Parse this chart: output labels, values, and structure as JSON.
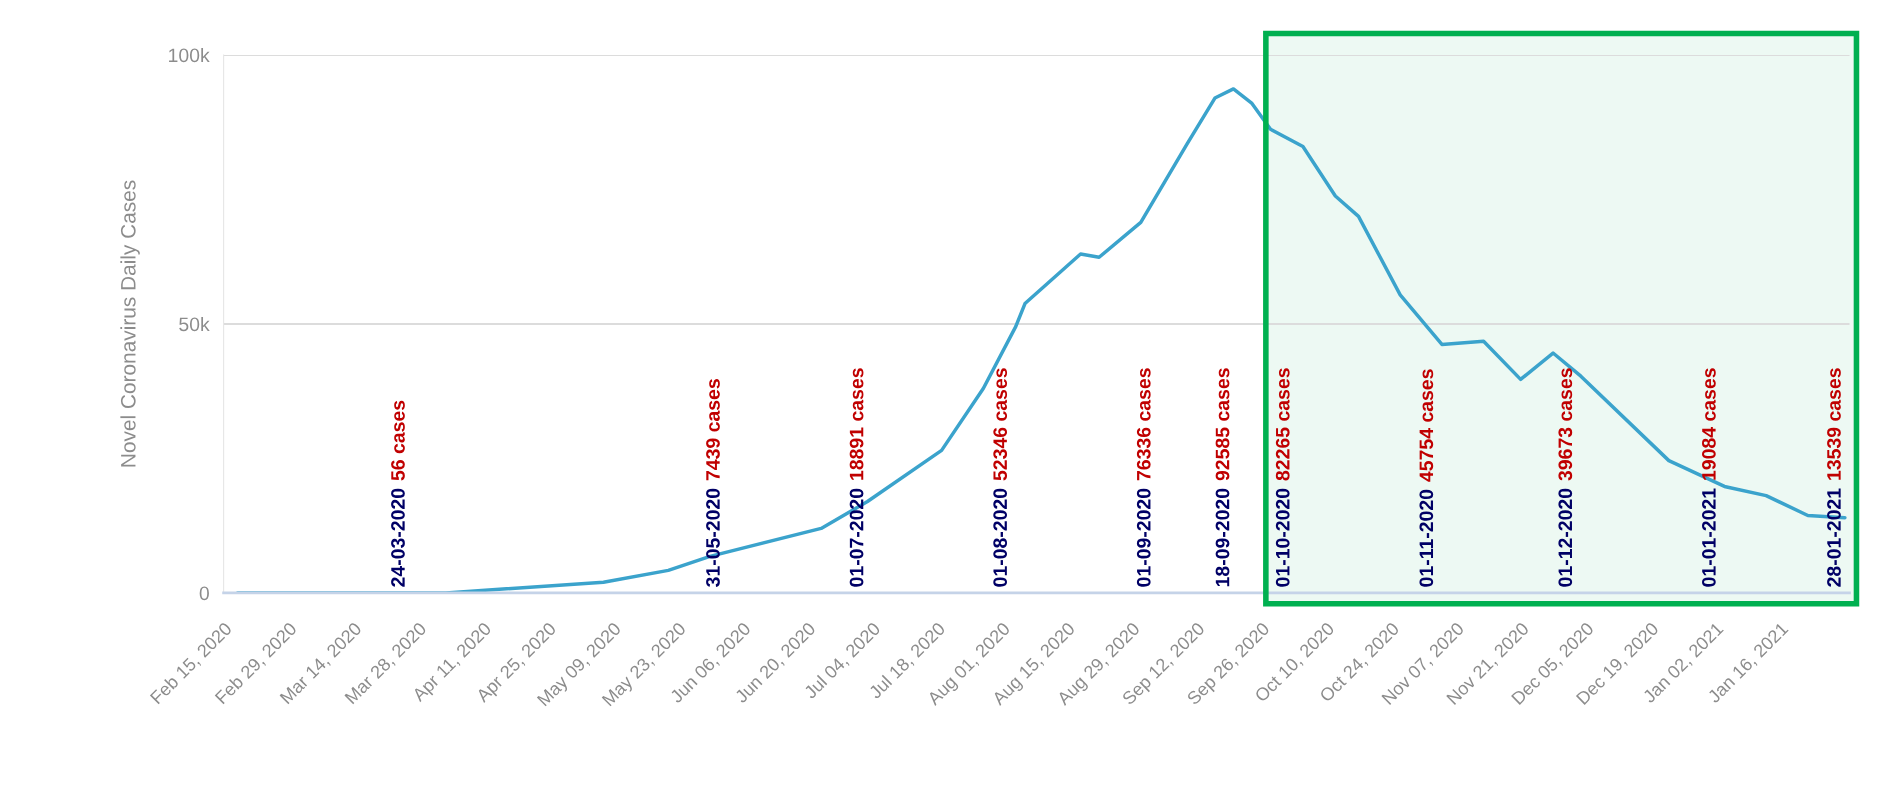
{
  "chart_data": {
    "type": "line",
    "ylabel": "Novel Coronavirus Daily Cases",
    "x": [
      "2020-02-18",
      "2020-04-03",
      "2020-05-07",
      "2020-05-21",
      "2020-05-30",
      "2020-06-23",
      "2020-07-03",
      "2020-07-19",
      "2020-07-28",
      "2020-08-04",
      "2020-08-06",
      "2020-08-18",
      "2020-08-22",
      "2020-08-31",
      "2020-09-10",
      "2020-09-16",
      "2020-09-20",
      "2020-09-24",
      "2020-09-28",
      "2020-10-05",
      "2020-10-12",
      "2020-10-17",
      "2020-10-26",
      "2020-11-04",
      "2020-11-13",
      "2020-11-21",
      "2020-11-28",
      "2020-12-04",
      "2020-12-23",
      "2021-01-04",
      "2021-01-13",
      "2021-01-22",
      "2021-01-30"
    ],
    "series": [
      {
        "color": "#3ba3cc",
        "values": [
          0,
          0,
          2000,
          4200,
          6800,
          12000,
          17000,
          26500,
          38000,
          49500,
          53800,
          63000,
          62400,
          68900,
          83500,
          92000,
          93700,
          91000,
          86200,
          83000,
          73800,
          70000,
          55400,
          46200,
          46800,
          39700,
          44600,
          40300,
          24600,
          19800,
          18100,
          14400,
          14000
        ]
      }
    ],
    "xlim": [
      "2020-02-15",
      "2021-01-31"
    ],
    "xticks": [
      {
        "value": "2020-02-15",
        "label": "Feb 15, 2020"
      },
      {
        "value": "2020-02-29",
        "label": "Feb 29, 2020"
      },
      {
        "value": "2020-03-14",
        "label": "Mar 14, 2020"
      },
      {
        "value": "2020-03-28",
        "label": "Mar 28, 2020"
      },
      {
        "value": "2020-04-11",
        "label": "Apr 11, 2020"
      },
      {
        "value": "2020-04-25",
        "label": "Apr 25, 2020"
      },
      {
        "value": "2020-05-09",
        "label": "May 09, 2020"
      },
      {
        "value": "2020-05-23",
        "label": "May 23, 2020"
      },
      {
        "value": "2020-06-06",
        "label": "Jun 06, 2020"
      },
      {
        "value": "2020-06-20",
        "label": "Jun 20, 2020"
      },
      {
        "value": "2020-07-04",
        "label": "Jul 04, 2020"
      },
      {
        "value": "2020-07-18",
        "label": "Jul 18, 2020"
      },
      {
        "value": "2020-08-01",
        "label": "Aug 01, 2020"
      },
      {
        "value": "2020-08-15",
        "label": "Aug 15, 2020"
      },
      {
        "value": "2020-08-29",
        "label": "Aug 29, 2020"
      },
      {
        "value": "2020-09-12",
        "label": "Sep 12, 2020"
      },
      {
        "value": "2020-09-26",
        "label": "Sep 26, 2020"
      },
      {
        "value": "2020-10-10",
        "label": "Oct 10, 2020"
      },
      {
        "value": "2020-10-24",
        "label": "Oct 24, 2020"
      },
      {
        "value": "2020-11-07",
        "label": "Nov 07, 2020"
      },
      {
        "value": "2020-11-21",
        "label": "Nov 21, 2020"
      },
      {
        "value": "2020-12-05",
        "label": "Dec 05, 2020"
      },
      {
        "value": "2020-12-19",
        "label": "Dec 19, 2020"
      },
      {
        "value": "2021-01-02",
        "label": "Jan 02, 2021"
      },
      {
        "value": "2021-01-16",
        "label": "Jan 16, 2021"
      }
    ],
    "ylim": [
      0,
      100000
    ],
    "yticks": [
      0,
      {
        "value": 50000,
        "label": "50k"
      },
      {
        "value": 100000,
        "label": "100k"
      }
    ],
    "grid": "y",
    "bands": [
      {
        "axis": "x",
        "from": "2020-09-27",
        "to": "2021-01-31",
        "color": "#00b050"
      }
    ],
    "annotations": [
      "24-03-2020 56 cases",
      "31-05-2020 7439 cases",
      "01-07-2020 18891 cases",
      "01-08-2020 52346 cases",
      "01-09-2020 76336 cases",
      "18-09-2020 92585 cases",
      "01-10-2020 82265 cases",
      "01-11-2020 45754 cases",
      "01-12-2020 39673 cases",
      "01-01-2021 19084 cases",
      "28-01-2021 13539 cases"
    ]
  }
}
